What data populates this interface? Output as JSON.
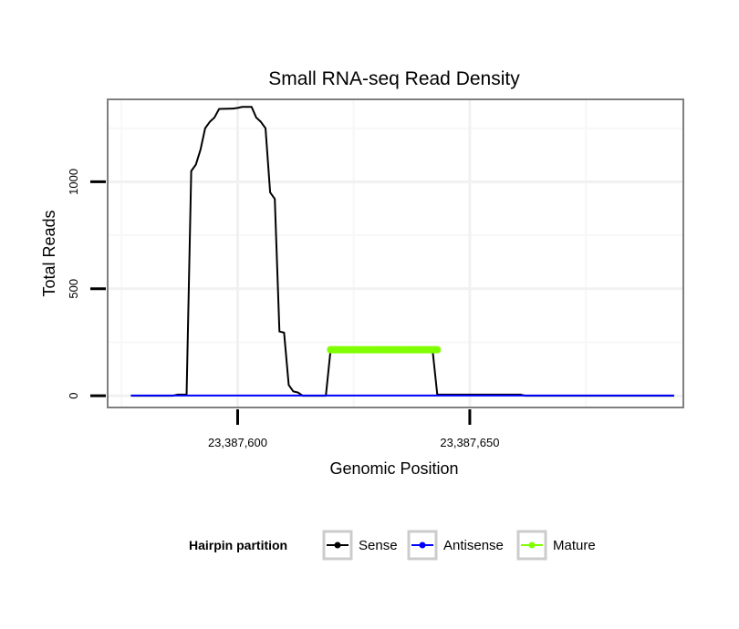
{
  "chart_data": {
    "type": "line",
    "title": "Small RNA-seq Read Density",
    "xlabel": "Genomic Position",
    "ylabel": "Total Reads",
    "xlim": [
      23387572,
      23387696
    ],
    "ylim": [
      -55,
      1385
    ],
    "x_ticks": [
      {
        "value": 23387600,
        "label": "23,387,600"
      },
      {
        "value": 23387650,
        "label": "23,387,650"
      }
    ],
    "y_ticks": [
      {
        "value": 0,
        "label": "0"
      },
      {
        "value": 500,
        "label": "500"
      },
      {
        "value": 1000,
        "label": "1000"
      }
    ],
    "y_minor": [
      250,
      750,
      1250
    ],
    "x_minor": [
      23387575,
      23387625,
      23387675
    ],
    "grid": true,
    "legend": {
      "title": "Hairpin partition",
      "position": "bottom",
      "entries": [
        {
          "name": "Sense",
          "color": "#000000"
        },
        {
          "name": "Antisense",
          "color": "#0000ff"
        },
        {
          "name": "Mature",
          "color": "#7fff00"
        }
      ]
    },
    "series": [
      {
        "name": "Sense",
        "color": "#000000",
        "points": [
          [
            23387577,
            0
          ],
          [
            23387586,
            0
          ],
          [
            23387587,
            5
          ],
          [
            23387589,
            5
          ],
          [
            23387590,
            1050
          ],
          [
            23387591,
            1080
          ],
          [
            23387592,
            1150
          ],
          [
            23387593,
            1250
          ],
          [
            23387594,
            1280
          ],
          [
            23387595,
            1300
          ],
          [
            23387596,
            1340
          ],
          [
            23387599,
            1342
          ],
          [
            23387600,
            1345
          ],
          [
            23387601,
            1350
          ],
          [
            23387603,
            1350
          ],
          [
            23387604,
            1300
          ],
          [
            23387605,
            1280
          ],
          [
            23387606,
            1250
          ],
          [
            23387607,
            950
          ],
          [
            23387608,
            920
          ],
          [
            23387609,
            300
          ],
          [
            23387610,
            295
          ],
          [
            23387611,
            50
          ],
          [
            23387612,
            20
          ],
          [
            23387613,
            15
          ],
          [
            23387614,
            0
          ],
          [
            23387619,
            0
          ],
          [
            23387620,
            210
          ],
          [
            23387642,
            210
          ],
          [
            23387643,
            5
          ],
          [
            23387653,
            5
          ],
          [
            23387661,
            5
          ],
          [
            23387662,
            0
          ],
          [
            23387694,
            0
          ]
        ]
      },
      {
        "name": "Antisense",
        "color": "#0000ff",
        "points": [
          [
            23387577,
            1
          ],
          [
            23387694,
            1
          ]
        ]
      },
      {
        "name": "Mature",
        "color": "#7fff00",
        "points": [
          [
            23387620,
            215
          ],
          [
            23387643,
            215
          ]
        ]
      }
    ]
  }
}
